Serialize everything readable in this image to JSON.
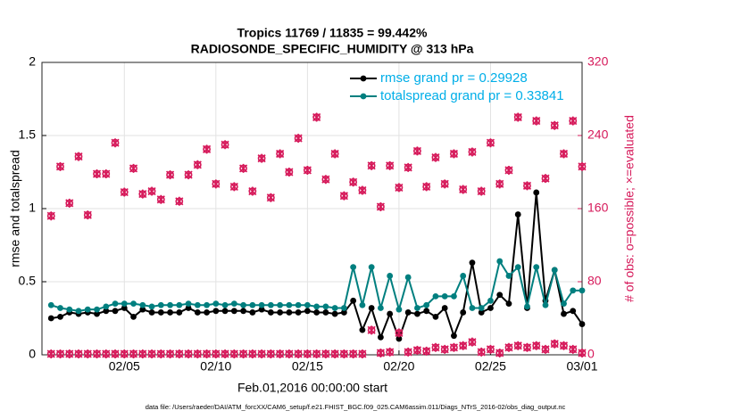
{
  "chart_data": {
    "type": "line",
    "title": "Tropics 11769 / 11835 = 99.442%",
    "subtitle": "RADIOSONDE_SPECIFIC_HUMIDITY @ 313 hPa",
    "x_label": "Feb.01,2016 00:00:00 start",
    "y_label": "rmse and totalspread",
    "y2_label": "# of obs: o=possible; ×=evaluated",
    "footnote": "data file: /Users/raeder/DAI/ATM_forcXX/CAM6_setup/f.e21.FHIST_BGC.f09_025.CAM6assim.011/Diags_NTrS_2016-02/obs_diag_output.nc",
    "xlim": [
      -0.5,
      29
    ],
    "xticks": [
      {
        "value": 4,
        "label": "02/05"
      },
      {
        "value": 9,
        "label": "02/10"
      },
      {
        "value": 14,
        "label": "02/15"
      },
      {
        "value": 19,
        "label": "02/20"
      },
      {
        "value": 24,
        "label": "02/25"
      },
      {
        "value": 29,
        "label": "03/01"
      }
    ],
    "ylim": [
      0,
      2
    ],
    "yticks": [
      0,
      0.5,
      1,
      1.5,
      2
    ],
    "y2lim": [
      0,
      320
    ],
    "y2ticks": [
      0,
      80,
      160,
      240,
      320
    ],
    "grid": true,
    "legend": "upper right",
    "x": [
      0,
      0.5,
      1,
      1.5,
      2,
      2.5,
      3,
      3.5,
      4,
      4.5,
      5,
      5.5,
      6,
      6.5,
      7,
      7.5,
      8,
      8.5,
      9,
      9.5,
      10,
      10.5,
      11,
      11.5,
      12,
      12.5,
      13,
      13.5,
      14,
      14.5,
      15,
      15.5,
      16,
      16.5,
      17,
      17.5,
      18,
      18.5,
      19,
      19.5,
      20,
      20.5,
      21,
      21.5,
      22,
      22.5,
      23,
      23.5,
      24,
      24.5,
      25,
      25.5,
      26,
      26.5,
      27,
      27.5,
      28,
      28.5,
      29
    ],
    "series": [
      {
        "name": "rmse grand pr = 0.29928",
        "color": "#000000",
        "marker": "dot",
        "values": [
          0.25,
          0.26,
          0.29,
          0.28,
          0.29,
          0.28,
          0.3,
          0.3,
          0.32,
          0.26,
          0.31,
          0.29,
          0.29,
          0.29,
          0.29,
          0.32,
          0.29,
          0.29,
          0.3,
          0.3,
          0.3,
          0.3,
          0.29,
          0.31,
          0.29,
          0.29,
          0.29,
          0.29,
          0.3,
          0.29,
          0.29,
          0.28,
          0.29,
          0.37,
          0.17,
          0.32,
          0.12,
          0.28,
          0.11,
          0.29,
          0.28,
          0.3,
          0.26,
          0.32,
          0.13,
          0.29,
          0.63,
          0.29,
          0.32,
          0.41,
          0.35,
          0.96,
          0.32,
          1.11,
          0.37,
          0.58,
          0.28,
          0.3,
          0.21
        ]
      },
      {
        "name": "totalspread grand pr = 0.33841",
        "color": "#007f7f",
        "marker": "dot",
        "values": [
          0.34,
          0.32,
          0.31,
          0.3,
          0.31,
          0.31,
          0.33,
          0.35,
          0.35,
          0.35,
          0.34,
          0.33,
          0.34,
          0.34,
          0.34,
          0.35,
          0.34,
          0.34,
          0.35,
          0.34,
          0.35,
          0.34,
          0.34,
          0.34,
          0.34,
          0.34,
          0.34,
          0.34,
          0.34,
          0.33,
          0.33,
          0.32,
          0.32,
          0.6,
          0.34,
          0.6,
          0.32,
          0.54,
          0.31,
          0.53,
          0.32,
          0.34,
          0.4,
          0.4,
          0.4,
          0.54,
          0.32,
          0.32,
          0.37,
          0.64,
          0.54,
          0.6,
          0.33,
          0.6,
          0.34,
          0.58,
          0.35,
          0.44,
          0.44
        ]
      },
      {
        "color": "#d6195a",
        "marker": "ox",
        "axis": "y2",
        "values": [
          152,
          206,
          166,
          217,
          153,
          198,
          198,
          232,
          178,
          204,
          176,
          179,
          170,
          197,
          168,
          197,
          208,
          225,
          187,
          230,
          184,
          204,
          179,
          215,
          172,
          220,
          200,
          237,
          202,
          260,
          192,
          220,
          174,
          189,
          180,
          207,
          162,
          207,
          183,
          205,
          223,
          184,
          216,
          187,
          220,
          181,
          222,
          179,
          232,
          187,
          202,
          260,
          185,
          256,
          193,
          251,
          220,
          256,
          206
        ]
      },
      {
        "color": "#d6195a",
        "marker": "ox",
        "axis": "y2",
        "values": [
          1,
          1,
          1,
          1,
          1,
          1,
          1,
          1,
          1,
          1,
          1,
          1,
          1,
          1,
          1,
          1,
          1,
          1,
          1,
          1,
          1,
          1,
          1,
          1,
          1,
          1,
          1,
          1,
          1,
          1,
          1,
          1,
          1,
          1,
          1,
          27,
          2,
          3,
          24,
          3,
          5,
          4,
          8,
          6,
          8,
          10,
          14,
          3,
          6,
          2,
          8,
          10,
          8,
          10,
          6,
          12,
          10,
          6,
          2
        ]
      }
    ]
  }
}
